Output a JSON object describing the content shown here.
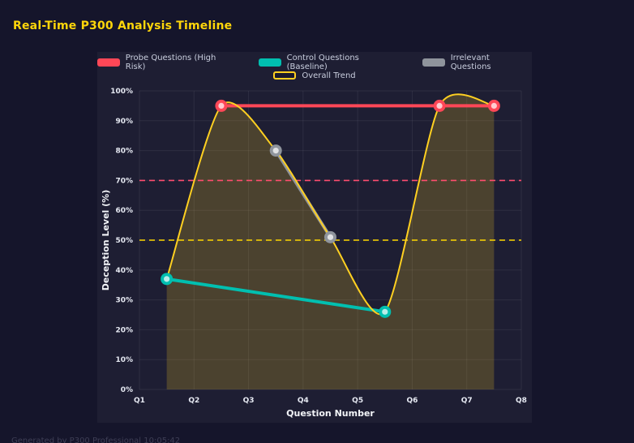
{
  "page": {
    "title": "Real-Time P300 Analysis Timeline",
    "footer": "Generated by P300 Professional  10:05:42"
  },
  "colors": {
    "background": "#15152b",
    "panel": "#1e1e33",
    "title": "#ffd60a",
    "grid": "rgba(255,255,255,0.07)",
    "tick_text": "#e6e9f2",
    "axis_title": "#f2f4f8",
    "legend_text": "#c9cede",
    "footer_text": "#3e3e55"
  },
  "chart_data": {
    "type": "line",
    "title": "Real-Time P300 Analysis Timeline",
    "xlabel": "Question Number",
    "ylabel": "Deception Level (%)",
    "x_ticks": [
      "Q1",
      "Q2",
      "Q3",
      "Q4",
      "Q5",
      "Q6",
      "Q7",
      "Q8"
    ],
    "x_range": [
      1,
      8
    ],
    "ylim": [
      0,
      100
    ],
    "y_ticks": [
      "0%",
      "10%",
      "20%",
      "30%",
      "40%",
      "50%",
      "60%",
      "70%",
      "80%",
      "90%",
      "100%"
    ],
    "grid": true,
    "legend_position": "top",
    "series": [
      {
        "name": "Probe Questions (High Risk)",
        "color": "#ff4757",
        "x": [
          2.5,
          6.5,
          7.5
        ],
        "y": [
          95,
          95,
          95
        ],
        "line_width": 4,
        "markers": true
      },
      {
        "name": "Control Questions (Baseline)",
        "color": "#00bfb0",
        "x": [
          1.5,
          5.5
        ],
        "y": [
          37,
          26
        ],
        "line_width": 4,
        "markers": true
      },
      {
        "name": "Irrelevant Questions",
        "color": "#8f949c",
        "x": [
          3.5,
          4.5
        ],
        "y": [
          80,
          51
        ],
        "line_width": 4,
        "markers": true
      },
      {
        "name": "Overall Trend",
        "color": "#ffd021",
        "x": [
          1.5,
          2.5,
          3.5,
          4.5,
          5.5,
          6.5,
          7.5
        ],
        "y": [
          37,
          95,
          80,
          51,
          26,
          95,
          95
        ],
        "line_width": 2,
        "smooth": true,
        "fill": true,
        "fill_opacity": 0.2,
        "markers": false
      }
    ],
    "reference_lines": [
      {
        "y": 70,
        "color": "#ff4d6f",
        "style": "dashed"
      },
      {
        "y": 50,
        "color": "#ffd700",
        "style": "dashed"
      }
    ],
    "legend_rows": [
      [
        0,
        1,
        2
      ],
      [
        3
      ]
    ]
  }
}
